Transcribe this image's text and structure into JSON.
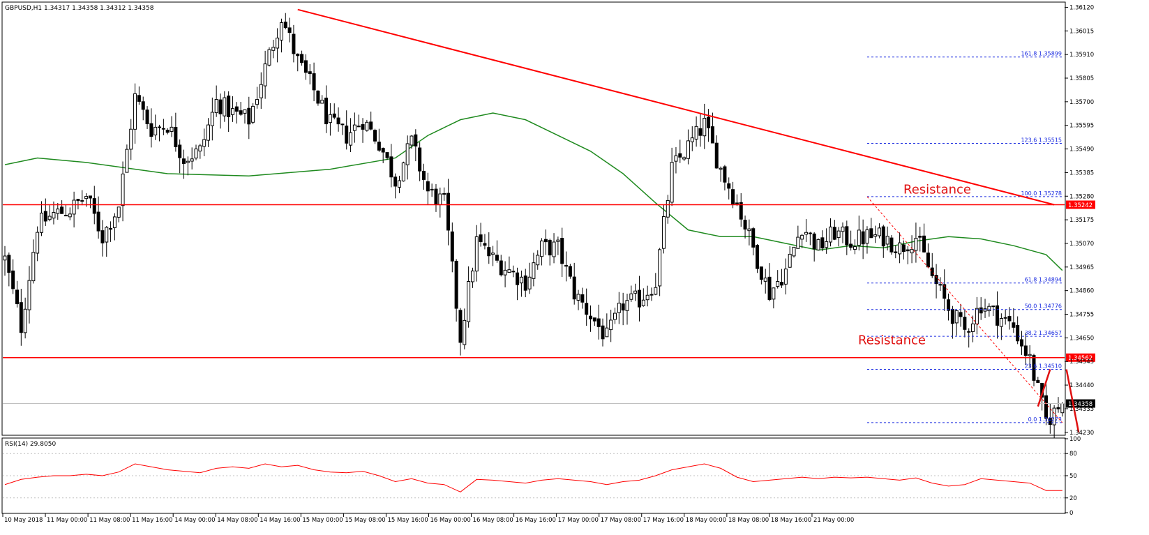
{
  "header": {
    "title": "GBPUSD,H1  1.34317 1.34358 1.34312 1.34358"
  },
  "rsi_header": {
    "title": "RSI(14) 29.8050"
  },
  "colors": {
    "trendline": "#ff0000",
    "resistance_line": "#ff0000",
    "moving_average": "#1f8a1f",
    "fib_lines": "#1a2be0",
    "candle": "#000000",
    "rsi_line": "#ff0000",
    "level_tag_bg": "#ff0000",
    "price_tag_bg": "#000000"
  },
  "chart_data": [
    {
      "type": "candlestick",
      "symbol": "GBPUSD",
      "timeframe": "H1",
      "ohlc_readout": {
        "open": 1.34317,
        "high": 1.34358,
        "low": 1.34312,
        "close": 1.34358
      },
      "ylim": [
        1.3422,
        1.3614
      ],
      "y_ticks": [
        "1.36120",
        "1.36015",
        "1.35910",
        "1.35805",
        "1.35700",
        "1.35595",
        "1.35490",
        "1.35385",
        "1.35280",
        "1.35175",
        "1.35070",
        "1.34965",
        "1.34860",
        "1.34755",
        "1.34650",
        "1.34545",
        "1.34440",
        "1.34335",
        "1.34230"
      ],
      "x_labels": [
        "10 May 2018",
        "11 May 00:00",
        "11 May 08:00",
        "11 May 16:00",
        "14 May 00:00",
        "14 May 08:00",
        "14 May 16:00",
        "15 May 00:00",
        "15 May 08:00",
        "15 May 16:00",
        "16 May 00:00",
        "16 May 08:00",
        "16 May 16:00",
        "17 May 00:00",
        "17 May 08:00",
        "17 May 16:00",
        "18 May 00:00",
        "18 May 08:00",
        "18 May 16:00",
        "21 May 00:00"
      ],
      "x_range_bars": [
        0,
        260
      ],
      "close_path": [
        [
          0,
          1.35
        ],
        [
          4,
          1.347
        ],
        [
          8,
          1.3515
        ],
        [
          12,
          1.352
        ],
        [
          16,
          1.3522
        ],
        [
          20,
          1.3528
        ],
        [
          24,
          1.351
        ],
        [
          28,
          1.3524
        ],
        [
          32,
          1.3572
        ],
        [
          36,
          1.3558
        ],
        [
          40,
          1.356
        ],
        [
          44,
          1.3545
        ],
        [
          48,
          1.3548
        ],
        [
          52,
          1.357
        ],
        [
          56,
          1.3565
        ],
        [
          60,
          1.3562
        ],
        [
          64,
          1.3585
        ],
        [
          68,
          1.3608
        ],
        [
          72,
          1.3588
        ],
        [
          76,
          1.3575
        ],
        [
          80,
          1.356
        ],
        [
          84,
          1.3555
        ],
        [
          88,
          1.3562
        ],
        [
          92,
          1.3552
        ],
        [
          96,
          1.3535
        ],
        [
          100,
          1.3552
        ],
        [
          104,
          1.353
        ],
        [
          108,
          1.3525
        ],
        [
          112,
          1.3465
        ],
        [
          116,
          1.3508
        ],
        [
          120,
          1.35
        ],
        [
          124,
          1.3495
        ],
        [
          128,
          1.349
        ],
        [
          132,
          1.3505
        ],
        [
          136,
          1.3505
        ],
        [
          140,
          1.3485
        ],
        [
          144,
          1.3475
        ],
        [
          148,
          1.3465
        ],
        [
          152,
          1.348
        ],
        [
          156,
          1.3482
        ],
        [
          160,
          1.349
        ],
        [
          164,
          1.354
        ],
        [
          168,
          1.355
        ],
        [
          172,
          1.356
        ],
        [
          176,
          1.354
        ],
        [
          180,
          1.3525
        ],
        [
          184,
          1.3505
        ],
        [
          188,
          1.3485
        ],
        [
          192,
          1.3495
        ],
        [
          196,
          1.3515
        ],
        [
          200,
          1.3505
        ],
        [
          204,
          1.3512
        ],
        [
          208,
          1.3508
        ],
        [
          212,
          1.351
        ],
        [
          216,
          1.351
        ],
        [
          220,
          1.3505
        ],
        [
          224,
          1.351
        ],
        [
          228,
          1.3492
        ],
        [
          232,
          1.3478
        ],
        [
          236,
          1.3468
        ],
        [
          240,
          1.348
        ],
        [
          244,
          1.3475
        ],
        [
          248,
          1.347
        ],
        [
          252,
          1.3455
        ],
        [
          256,
          1.3428
        ],
        [
          260,
          1.34358
        ]
      ],
      "moving_average": [
        [
          0,
          1.3542
        ],
        [
          8,
          1.3545
        ],
        [
          20,
          1.3543
        ],
        [
          40,
          1.3538
        ],
        [
          60,
          1.3537
        ],
        [
          80,
          1.354
        ],
        [
          96,
          1.3545
        ],
        [
          104,
          1.3555
        ],
        [
          112,
          1.3562
        ],
        [
          120,
          1.3565
        ],
        [
          128,
          1.3562
        ],
        [
          136,
          1.3555
        ],
        [
          144,
          1.3548
        ],
        [
          152,
          1.3538
        ],
        [
          160,
          1.3525
        ],
        [
          168,
          1.3513
        ],
        [
          176,
          1.351
        ],
        [
          184,
          1.351
        ],
        [
          192,
          1.3507
        ],
        [
          200,
          1.3504
        ],
        [
          208,
          1.3506
        ],
        [
          216,
          1.3505
        ],
        [
          224,
          1.3508
        ],
        [
          232,
          1.351
        ],
        [
          240,
          1.3509
        ],
        [
          248,
          1.3506
        ],
        [
          256,
          1.3502
        ],
        [
          260,
          1.3495
        ]
      ],
      "trendline": {
        "start": [
          72,
          1.3611
        ],
        "end": [
          258,
          1.35242
        ]
      },
      "resistance_levels": [
        {
          "price": 1.35242,
          "tag": "1.35242",
          "label": "Resistance"
        },
        {
          "price": 1.34562,
          "tag": "1.34562",
          "label": "Resistance"
        }
      ],
      "current_price": {
        "price": 1.34358,
        "tag": "1.34358"
      },
      "fibonacci": {
        "from_bar": 212,
        "to_bar": 260,
        "high": 1.35278,
        "low": 1.34273,
        "levels": [
          {
            "label": "161.8",
            "price": 1.35899
          },
          {
            "label": "123.6",
            "price": 1.35515
          },
          {
            "label": "100.0",
            "price": 1.35278
          },
          {
            "label": "61.8",
            "price": 1.34894
          },
          {
            "label": "50.0",
            "price": 1.34776
          },
          {
            "label": "38.2",
            "price": 1.34657
          },
          {
            "label": "23.6",
            "price": 1.3451
          },
          {
            "label": "0.0",
            "price": 1.34273
          }
        ]
      },
      "projection_arrows": [
        {
          "from": [
            254,
            1.34345
          ],
          "to": [
            257,
            1.3451
          ]
        },
        {
          "from": [
            261,
            1.3451
          ],
          "to": [
            264,
            1.3423
          ]
        }
      ]
    },
    {
      "type": "line",
      "name": "RSI(14)",
      "value": 29.805,
      "ylim": [
        0,
        100
      ],
      "y_ticks": [
        100,
        80,
        50,
        20,
        0
      ],
      "levels": [
        20,
        50,
        80
      ],
      "points": [
        [
          0,
          38
        ],
        [
          4,
          45
        ],
        [
          8,
          48
        ],
        [
          12,
          50
        ],
        [
          16,
          50
        ],
        [
          20,
          52
        ],
        [
          24,
          50
        ],
        [
          28,
          55
        ],
        [
          32,
          66
        ],
        [
          36,
          62
        ],
        [
          40,
          58
        ],
        [
          44,
          56
        ],
        [
          48,
          54
        ],
        [
          52,
          60
        ],
        [
          56,
          62
        ],
        [
          60,
          60
        ],
        [
          64,
          66
        ],
        [
          68,
          62
        ],
        [
          72,
          64
        ],
        [
          76,
          58
        ],
        [
          80,
          55
        ],
        [
          84,
          54
        ],
        [
          88,
          56
        ],
        [
          92,
          50
        ],
        [
          96,
          42
        ],
        [
          100,
          46
        ],
        [
          104,
          40
        ],
        [
          108,
          38
        ],
        [
          112,
          28
        ],
        [
          116,
          45
        ],
        [
          120,
          44
        ],
        [
          124,
          42
        ],
        [
          128,
          40
        ],
        [
          132,
          44
        ],
        [
          136,
          46
        ],
        [
          140,
          44
        ],
        [
          144,
          42
        ],
        [
          148,
          38
        ],
        [
          152,
          42
        ],
        [
          156,
          44
        ],
        [
          160,
          50
        ],
        [
          164,
          58
        ],
        [
          168,
          62
        ],
        [
          172,
          66
        ],
        [
          176,
          60
        ],
        [
          180,
          48
        ],
        [
          184,
          42
        ],
        [
          188,
          44
        ],
        [
          192,
          46
        ],
        [
          196,
          48
        ],
        [
          200,
          46
        ],
        [
          204,
          48
        ],
        [
          208,
          47
        ],
        [
          212,
          48
        ],
        [
          216,
          46
        ],
        [
          220,
          44
        ],
        [
          224,
          47
        ],
        [
          228,
          40
        ],
        [
          232,
          36
        ],
        [
          236,
          38
        ],
        [
          240,
          46
        ],
        [
          244,
          44
        ],
        [
          248,
          42
        ],
        [
          252,
          40
        ],
        [
          256,
          30
        ],
        [
          260,
          30
        ]
      ]
    }
  ]
}
